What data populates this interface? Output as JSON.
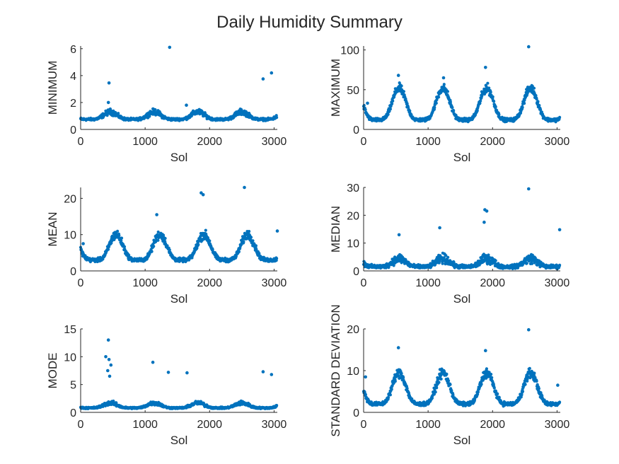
{
  "title": "Daily Humidity Summary",
  "chart_data": [
    {
      "type": "scatter",
      "ylabel": "MINIMUM",
      "xlabel": "Sol",
      "xlim": [
        0,
        3050
      ],
      "ylim": [
        0,
        6.2
      ],
      "xticks": [
        0,
        1000,
        2000,
        3000
      ],
      "yticks": [
        0,
        2,
        4,
        6
      ],
      "marker_color": "#0072BD",
      "seasonal": {
        "period": 680,
        "peak_sol": 460,
        "base": 0.75,
        "amplitude": 0.55,
        "spread": 0.2
      },
      "outliers": [
        [
          440,
          3.45
        ],
        [
          1380,
          6.1
        ],
        [
          2830,
          3.75
        ],
        [
          2960,
          4.2
        ],
        [
          430,
          2.0
        ],
        [
          1640,
          1.8
        ]
      ]
    },
    {
      "type": "scatter",
      "ylabel": "MAXIMUM",
      "xlabel": "Sol",
      "xlim": [
        0,
        3050
      ],
      "ylim": [
        0,
        105
      ],
      "xticks": [
        0,
        1000,
        2000,
        3000
      ],
      "yticks": [
        0,
        50,
        100
      ],
      "marker_color": "#0072BD",
      "seasonal": {
        "period": 680,
        "peak_sol": 550,
        "base": 12,
        "amplitude": 40,
        "spread": 5
      },
      "outliers": [
        [
          540,
          68
        ],
        [
          1240,
          65
        ],
        [
          1890,
          78
        ],
        [
          2560,
          104
        ],
        [
          60,
          33
        ]
      ]
    },
    {
      "type": "scatter",
      "ylabel": "MEAN",
      "xlabel": "Sol",
      "xlim": [
        0,
        3050
      ],
      "ylim": [
        0,
        23
      ],
      "xticks": [
        0,
        1000,
        2000,
        3000
      ],
      "yticks": [
        0,
        10,
        20
      ],
      "marker_color": "#0072BD",
      "seasonal": {
        "period": 680,
        "peak_sol": 550,
        "base": 3,
        "amplitude": 7,
        "spread": 1.2
      },
      "outliers": [
        [
          1180,
          15.5
        ],
        [
          1870,
          21.5
        ],
        [
          1900,
          21
        ],
        [
          2540,
          23
        ],
        [
          3050,
          11
        ],
        [
          40,
          7.5
        ]
      ]
    },
    {
      "type": "scatter",
      "ylabel": "MEDIAN",
      "xlabel": "Sol",
      "xlim": [
        0,
        3050
      ],
      "ylim": [
        0,
        30
      ],
      "xticks": [
        0,
        1000,
        2000,
        3000
      ],
      "yticks": [
        0,
        10,
        20,
        30
      ],
      "marker_color": "#0072BD",
      "seasonal": {
        "period": 680,
        "peak_sol": 550,
        "base": 1.5,
        "amplitude": 3,
        "spread": 1.6
      },
      "outliers": [
        [
          2560,
          29.5
        ],
        [
          1880,
          22
        ],
        [
          1910,
          21.5
        ],
        [
          1870,
          17.5
        ],
        [
          1180,
          15.5
        ],
        [
          3040,
          14.8
        ],
        [
          550,
          13
        ]
      ]
    },
    {
      "type": "scatter",
      "ylabel": "MODE",
      "xlabel": "Sol",
      "xlim": [
        0,
        3050
      ],
      "ylim": [
        0,
        15
      ],
      "xticks": [
        0,
        1000,
        2000,
        3000
      ],
      "yticks": [
        0,
        5,
        10,
        15
      ],
      "marker_color": "#0072BD",
      "seasonal": {
        "period": 680,
        "peak_sol": 460,
        "base": 0.8,
        "amplitude": 0.9,
        "spread": 0.35
      },
      "outliers": [
        [
          430,
          13
        ],
        [
          390,
          10
        ],
        [
          440,
          9.5
        ],
        [
          470,
          8.5
        ],
        [
          1120,
          9
        ],
        [
          1360,
          7.2
        ],
        [
          1650,
          7.1
        ],
        [
          2830,
          7.3
        ],
        [
          2960,
          6.8
        ],
        [
          420,
          7.5
        ],
        [
          450,
          6.5
        ]
      ]
    },
    {
      "type": "scatter",
      "ylabel": "STANDARD DEVIATION",
      "xlabel": "Sol",
      "xlim": [
        0,
        3050
      ],
      "ylim": [
        0,
        20
      ],
      "xticks": [
        0,
        1000,
        2000,
        3000
      ],
      "yticks": [
        0,
        10,
        20
      ],
      "marker_color": "#0072BD",
      "seasonal": {
        "period": 680,
        "peak_sol": 550,
        "base": 2,
        "amplitude": 7.5,
        "spread": 1.1
      },
      "outliers": [
        [
          540,
          15.5
        ],
        [
          1890,
          14.8
        ],
        [
          2560,
          19.8
        ],
        [
          3010,
          6.5
        ],
        [
          30,
          8.5
        ]
      ]
    }
  ]
}
